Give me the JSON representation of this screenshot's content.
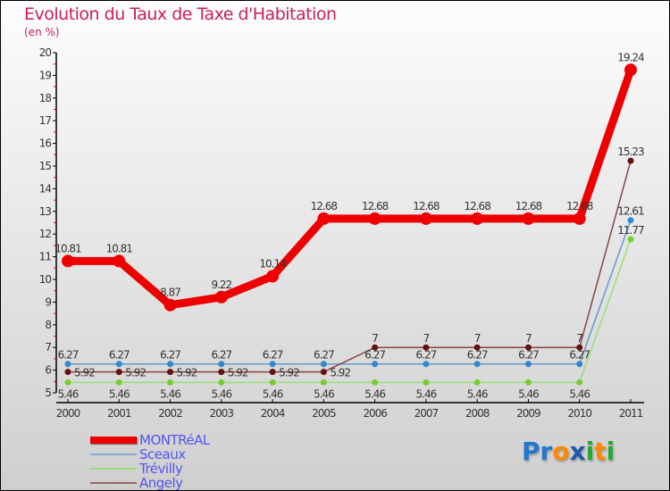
{
  "chart_data": {
    "type": "line",
    "title": "Evolution du Taux de Taxe d'Habitation",
    "subtitle": "(en %)",
    "x": [
      "2000",
      "2001",
      "2002",
      "2003",
      "2004",
      "2005",
      "2006",
      "2007",
      "2008",
      "2009",
      "2010",
      "2011"
    ],
    "ylim": [
      5,
      20
    ],
    "yticks": [
      "5",
      "6",
      "7",
      "8",
      "9",
      "10",
      "11",
      "12",
      "13",
      "14",
      "15",
      "16",
      "17",
      "18",
      "19",
      "20"
    ],
    "series": [
      {
        "name": "MONTRéAL",
        "color": "#ee0000",
        "values": [
          10.81,
          10.81,
          8.87,
          9.22,
          10.14,
          12.68,
          12.68,
          12.68,
          12.68,
          12.68,
          12.68,
          19.24
        ]
      },
      {
        "name": "Sceaux",
        "color": "#6699cc",
        "marker": "#3388cc",
        "values": [
          6.27,
          6.27,
          6.27,
          6.27,
          6.27,
          6.27,
          6.27,
          6.27,
          6.27,
          6.27,
          6.27,
          12.61
        ]
      },
      {
        "name": "Trévilly",
        "color": "#99dd77",
        "marker": "#77cc33",
        "values": [
          5.46,
          5.46,
          5.46,
          5.46,
          5.46,
          5.46,
          5.46,
          5.46,
          5.46,
          5.46,
          5.46,
          11.77
        ]
      },
      {
        "name": "Angely",
        "color": "#884444",
        "marker": "#661111",
        "values": [
          5.92,
          5.92,
          5.92,
          5.92,
          5.92,
          5.92,
          7,
          7,
          7,
          7,
          7,
          15.23
        ]
      }
    ],
    "legend": "bottom-left"
  },
  "logo": "Proxiti"
}
